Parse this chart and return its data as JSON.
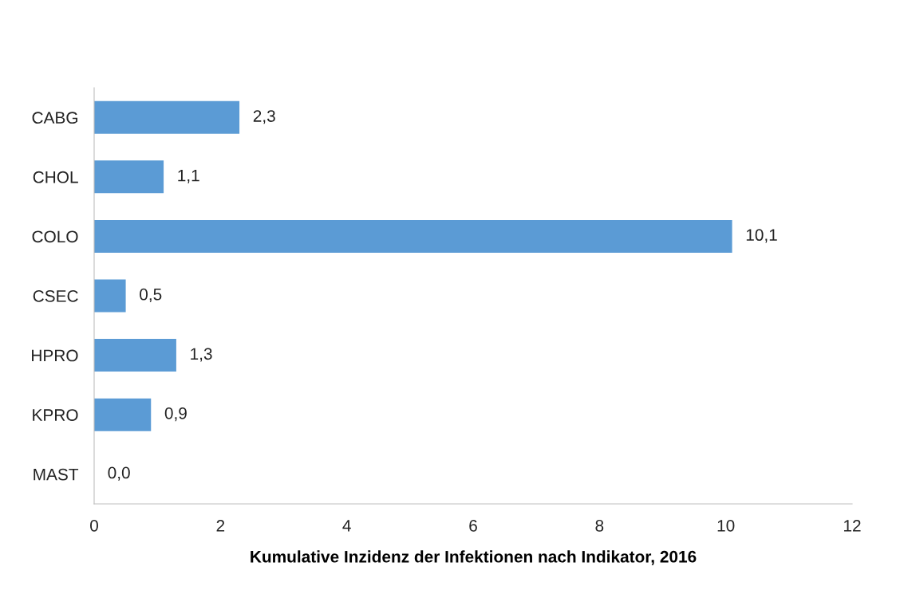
{
  "chart_data": {
    "type": "bar",
    "orientation": "horizontal",
    "xlabel": "Kumulative Inzidenz der Infektionen nach Indikator, 2016",
    "categories": [
      "CABG",
      "CHOL",
      "COLO",
      "CSEC",
      "HPRO",
      "KPRO",
      "MAST"
    ],
    "values": [
      2.3,
      1.1,
      10.1,
      0.5,
      1.3,
      0.9,
      0.0
    ],
    "value_labels": [
      "2,3",
      "1,1",
      "10,1",
      "0,5",
      "1,3",
      "0,9",
      "0,0"
    ],
    "color": "#5b9bd5",
    "xlim": [
      0,
      12
    ],
    "xticks": [
      0,
      2,
      4,
      6,
      8,
      10,
      12
    ],
    "grid": false,
    "legend": false
  }
}
